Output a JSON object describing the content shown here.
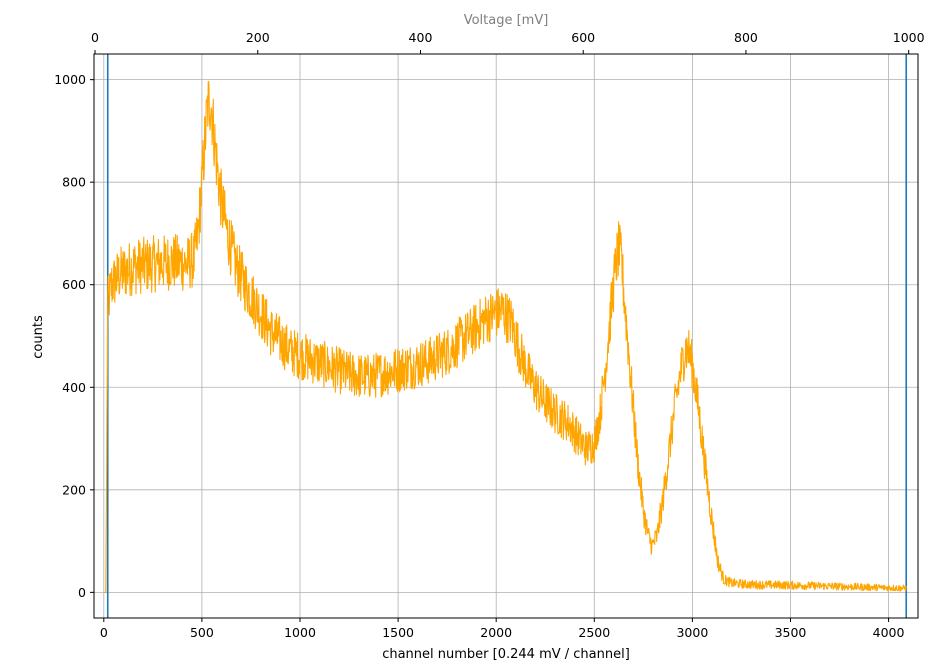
{
  "chart_data": {
    "type": "line",
    "xlabel": "channel number [0.244 mV / channel]",
    "ylabel": "counts",
    "secondary_xlabel": "Voltage [mV]",
    "xlim": [
      -50,
      4150
    ],
    "ylim": [
      -50,
      1050
    ],
    "secondary_xlim": [
      -1.25,
      1011.45
    ],
    "x_ticks": [
      0,
      500,
      1000,
      1500,
      2000,
      2500,
      3000,
      3500,
      4000
    ],
    "y_ticks": [
      0,
      200,
      400,
      600,
      800,
      1000
    ],
    "secondary_x_ticks": [
      0,
      200,
      400,
      600,
      800,
      1000
    ],
    "grid": true,
    "vertical_lines": [
      {
        "x": 20,
        "color": "#1f77b4"
      },
      {
        "x": 4090,
        "color": "#1f77b4"
      }
    ],
    "series": [
      {
        "color": "#FFA500",
        "points": [
          [
            0,
            0
          ],
          [
            10,
            0
          ],
          [
            20,
            560
          ],
          [
            40,
            600
          ],
          [
            80,
            620
          ],
          [
            150,
            635
          ],
          [
            250,
            640
          ],
          [
            350,
            645
          ],
          [
            420,
            640
          ],
          [
            460,
            650
          ],
          [
            480,
            700
          ],
          [
            500,
            800
          ],
          [
            515,
            880
          ],
          [
            530,
            950
          ],
          [
            545,
            960
          ],
          [
            560,
            900
          ],
          [
            580,
            820
          ],
          [
            600,
            760
          ],
          [
            630,
            700
          ],
          [
            670,
            640
          ],
          [
            720,
            600
          ],
          [
            780,
            560
          ],
          [
            850,
            510
          ],
          [
            950,
            470
          ],
          [
            1050,
            455
          ],
          [
            1150,
            440
          ],
          [
            1250,
            425
          ],
          [
            1350,
            420
          ],
          [
            1450,
            430
          ],
          [
            1550,
            440
          ],
          [
            1650,
            450
          ],
          [
            1750,
            470
          ],
          [
            1850,
            500
          ],
          [
            1950,
            535
          ],
          [
            2030,
            550
          ],
          [
            2080,
            525
          ],
          [
            2120,
            470
          ],
          [
            2170,
            420
          ],
          [
            2230,
            380
          ],
          [
            2300,
            350
          ],
          [
            2370,
            330
          ],
          [
            2420,
            300
          ],
          [
            2460,
            280
          ],
          [
            2500,
            290
          ],
          [
            2530,
            350
          ],
          [
            2560,
            450
          ],
          [
            2590,
            570
          ],
          [
            2610,
            640
          ],
          [
            2625,
            670
          ],
          [
            2640,
            640
          ],
          [
            2660,
            540
          ],
          [
            2690,
            400
          ],
          [
            2720,
            260
          ],
          [
            2750,
            160
          ],
          [
            2775,
            110
          ],
          [
            2795,
            90
          ],
          [
            2820,
            110
          ],
          [
            2850,
            180
          ],
          [
            2880,
            270
          ],
          [
            2910,
            360
          ],
          [
            2940,
            430
          ],
          [
            2965,
            475
          ],
          [
            2985,
            470
          ],
          [
            3010,
            420
          ],
          [
            3040,
            330
          ],
          [
            3070,
            230
          ],
          [
            3100,
            140
          ],
          [
            3130,
            60
          ],
          [
            3160,
            25
          ],
          [
            3200,
            18
          ],
          [
            3300,
            15
          ],
          [
            3500,
            14
          ],
          [
            3700,
            12
          ],
          [
            3900,
            10
          ],
          [
            4000,
            9
          ],
          [
            4090,
            8
          ]
        ]
      }
    ]
  }
}
